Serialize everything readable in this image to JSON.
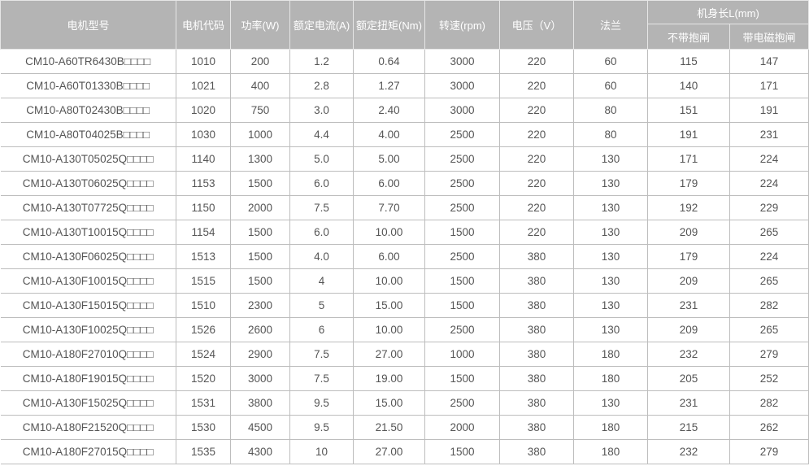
{
  "headers": {
    "model": "电机型号",
    "code": "电机代码",
    "power": "功率(W)",
    "current": "额定电流(A)",
    "torque": "额定扭矩(Nm)",
    "speed": "转速(rpm)",
    "voltage": "电压（V）",
    "flange": "法兰",
    "length": "机身长L(mm)",
    "length_no_brake": "不带抱闸",
    "length_brake": "带电磁抱闸"
  },
  "rows": [
    [
      "CM10-A60TR6430B□□□□",
      "1010",
      "200",
      "1.2",
      "0.64",
      "3000",
      "220",
      "60",
      "115",
      "147"
    ],
    [
      "CM10-A60T01330B□□□□",
      "1021",
      "400",
      "2.8",
      "1.27",
      "3000",
      "220",
      "60",
      "140",
      "171"
    ],
    [
      "CM10-A80T02430B□□□□",
      "1020",
      "750",
      "3.0",
      "2.40",
      "3000",
      "220",
      "80",
      "151",
      "191"
    ],
    [
      "CM10-A80T04025B□□□□",
      "1030",
      "1000",
      "4.4",
      "4.00",
      "2500",
      "220",
      "80",
      "191",
      "231"
    ],
    [
      "CM10-A130T05025Q□□□□",
      "1140",
      "1300",
      "5.0",
      "5.00",
      "2500",
      "220",
      "130",
      "171",
      "224"
    ],
    [
      "CM10-A130T06025Q□□□□",
      "1153",
      "1500",
      "6.0",
      "6.00",
      "2500",
      "220",
      "130",
      "179",
      "224"
    ],
    [
      "CM10-A130T07725Q□□□□",
      "1150",
      "2000",
      "7.5",
      "7.70",
      "2500",
      "220",
      "130",
      "192",
      "229"
    ],
    [
      "CM10-A130T10015Q□□□□",
      "1154",
      "1500",
      "6.0",
      "10.00",
      "1500",
      "220",
      "130",
      "209",
      "265"
    ],
    [
      "CM10-A130F06025Q□□□□",
      "1513",
      "1500",
      "4.0",
      "6.00",
      "2500",
      "380",
      "130",
      "179",
      "224"
    ],
    [
      "CM10-A130F10015Q□□□□",
      "1515",
      "1500",
      "4",
      "10.00",
      "1500",
      "380",
      "130",
      "209",
      "265"
    ],
    [
      "CM10-A130F15015Q□□□□",
      "1510",
      "2300",
      "5",
      "15.00",
      "1500",
      "380",
      "130",
      "231",
      "282"
    ],
    [
      "CM10-A130F10025Q□□□□",
      "1526",
      "2600",
      "6",
      "10.00",
      "2500",
      "380",
      "130",
      "209",
      "265"
    ],
    [
      "CM10-A180F27010Q□□□□",
      "1524",
      "2900",
      "7.5",
      "27.00",
      "1000",
      "380",
      "180",
      "232",
      "279"
    ],
    [
      "CM10-A180F19015Q□□□□",
      "1520",
      "3000",
      "7.5",
      "19.00",
      "1500",
      "380",
      "180",
      "205",
      "252"
    ],
    [
      "CM10-A130F15025Q□□□□",
      "1531",
      "3800",
      "9.5",
      "15.00",
      "2500",
      "380",
      "130",
      "231",
      "282"
    ],
    [
      "CM10-A180F21520Q□□□□",
      "1530",
      "4500",
      "9.5",
      "21.50",
      "2000",
      "380",
      "180",
      "215",
      "262"
    ],
    [
      "CM10-A180F27015Q□□□□",
      "1535",
      "4300",
      "10",
      "27.00",
      "1500",
      "380",
      "180",
      "232",
      "279"
    ]
  ]
}
